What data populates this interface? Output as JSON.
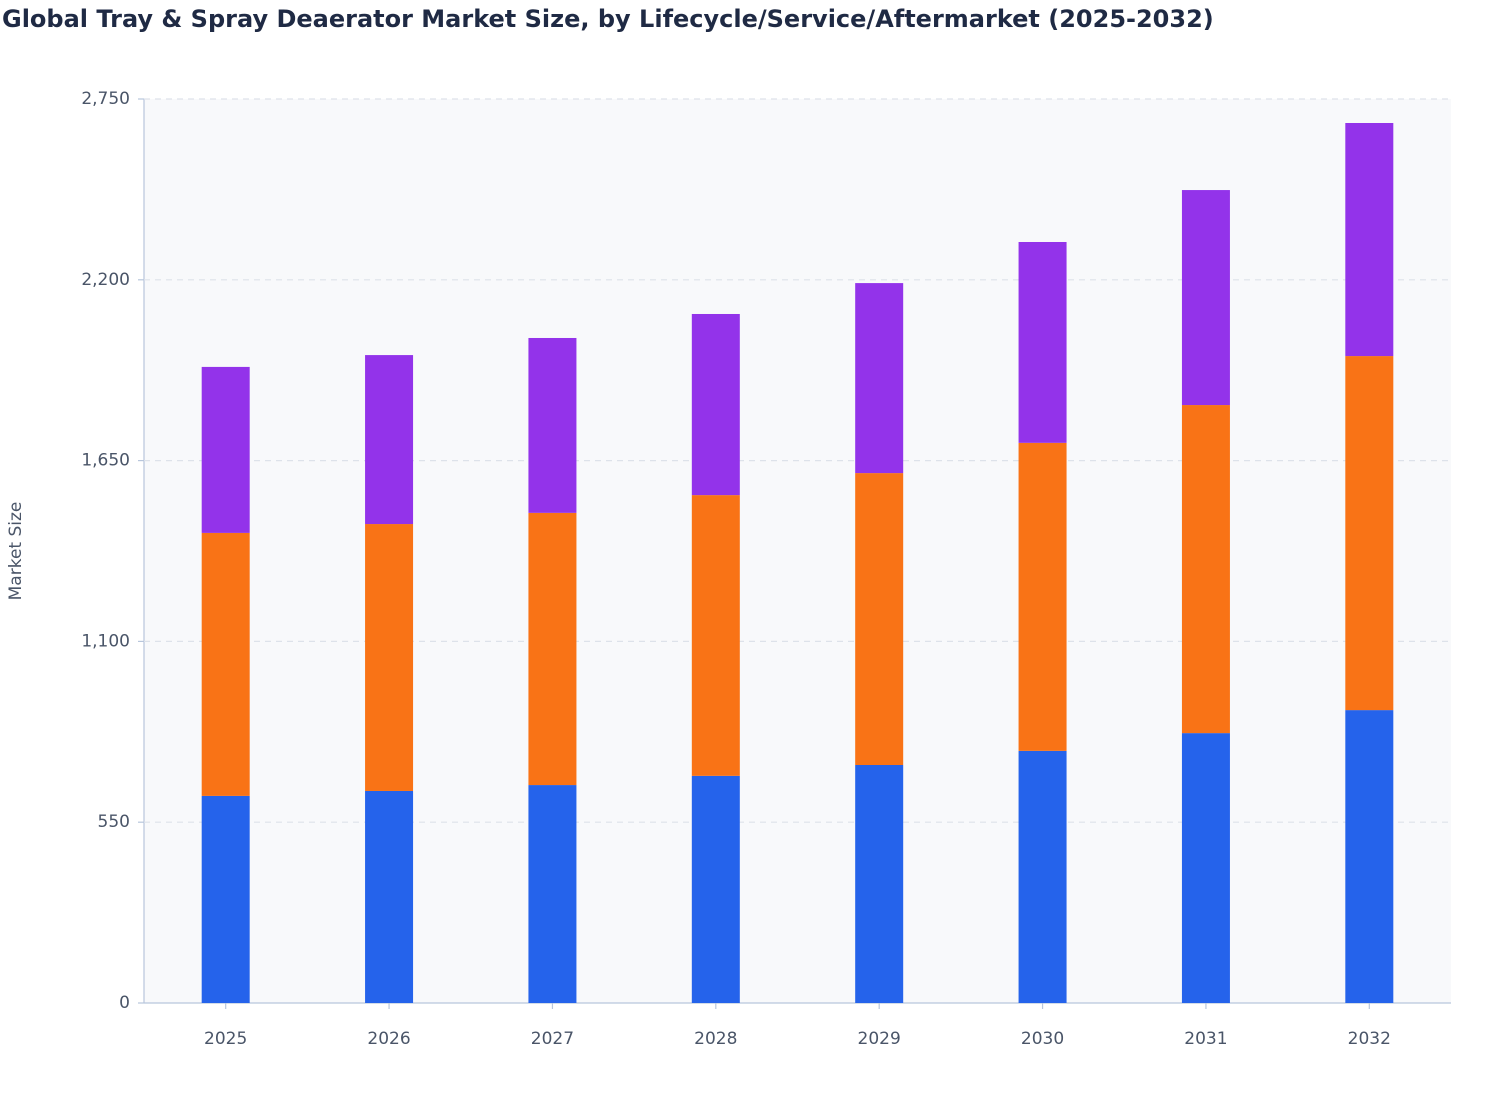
{
  "chart_data": {
    "type": "stacked_bar",
    "title": "Global Tray & Spray Deaerator Market Size, by Lifecycle/Service/Aftermarket (2025-2032)",
    "y_label": "Market Size",
    "categories": [
      "2025",
      "2026",
      "2027",
      "2028",
      "2029",
      "2030",
      "2031",
      "2032"
    ],
    "series": [
      {
        "color": "#2563eb",
        "values": [
          630,
          645,
          663,
          691,
          724,
          767,
          821,
          891
        ]
      },
      {
        "color": "#f97316",
        "values": [
          800,
          812,
          828,
          854,
          888,
          937,
          998,
          1077
        ]
      },
      {
        "color": "#9333ea",
        "values": [
          505,
          514,
          532,
          551,
          578,
          611,
          654,
          709
        ]
      }
    ],
    "ylim": [
      0,
      2750
    ],
    "yticks": [
      0,
      550,
      {
        "value": 1100,
        "label": "1,100"
      },
      {
        "value": 1650,
        "label": "1,650"
      },
      {
        "value": 2200,
        "label": "2,200"
      },
      {
        "value": 2750,
        "label": "2,750"
      }
    ],
    "grid": true
  }
}
